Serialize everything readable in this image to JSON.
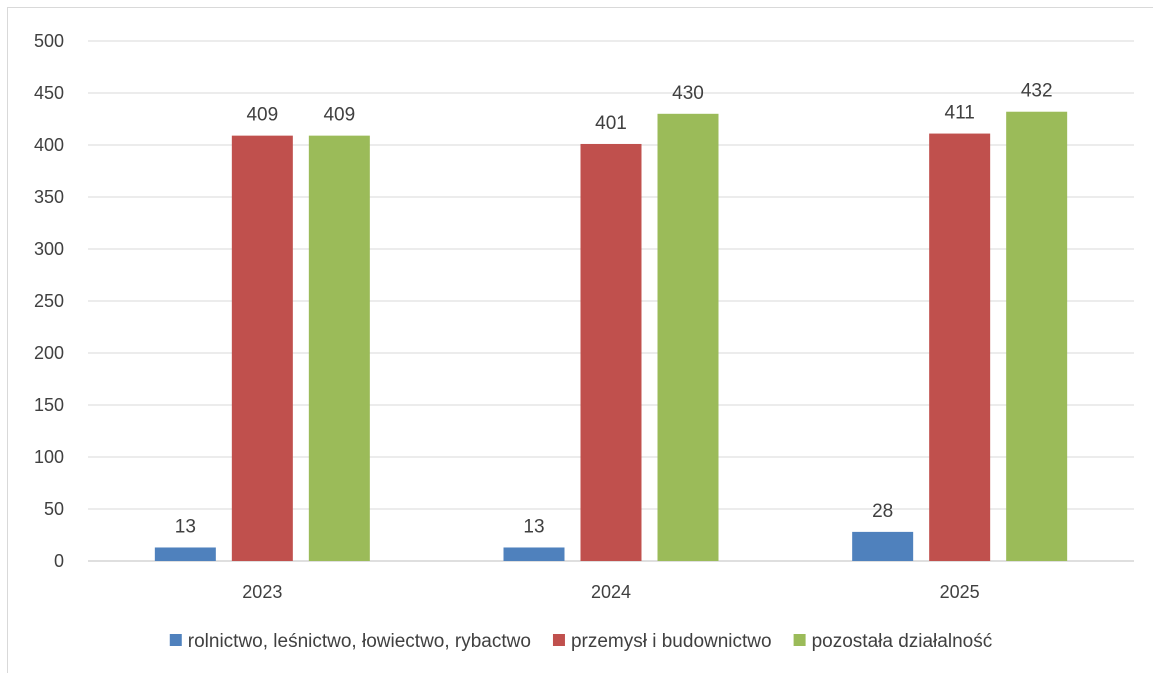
{
  "chart_data": {
    "type": "bar",
    "title": "",
    "xlabel": "",
    "ylabel": "",
    "categories": [
      "2023",
      "2024",
      "2025"
    ],
    "series": [
      {
        "name": "rolnictwo, leśnictwo, łowiectwo, rybactwo",
        "color": "#4f81bd",
        "values": [
          13,
          13,
          28
        ]
      },
      {
        "name": "przemysł i budownictwo",
        "color": "#c0504d",
        "values": [
          409,
          401,
          411
        ]
      },
      {
        "name": "pozostała działalność",
        "color": "#9bbb59",
        "values": [
          409,
          430,
          432
        ]
      }
    ],
    "ylim": [
      0,
      500
    ],
    "yticks": [
      0,
      50,
      100,
      150,
      200,
      250,
      300,
      350,
      400,
      450,
      500
    ],
    "grid": true,
    "data_labels": true,
    "legend_position": "bottom"
  }
}
